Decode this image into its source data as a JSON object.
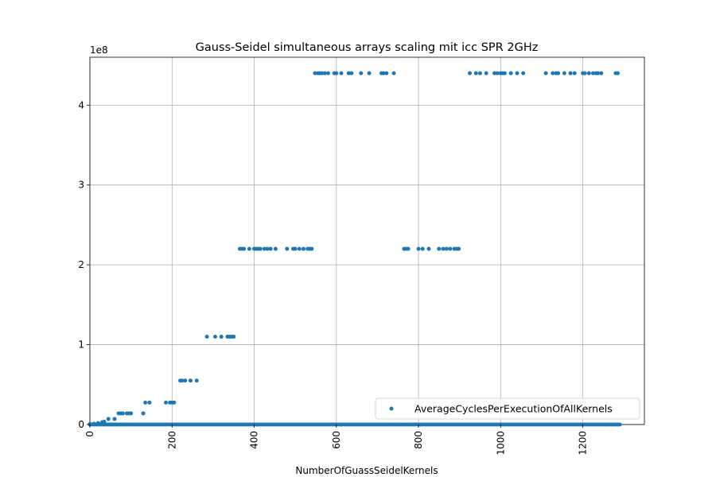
{
  "chart_data": {
    "type": "scatter",
    "title": "Gauss-Seidel simultaneous arrays scaling mit icc SPR 2GHz",
    "xlabel": "NumberOfGuassSeidelKernels",
    "ylabel": "",
    "y_offset_label": "1e8",
    "xlim": [
      0,
      1350
    ],
    "ylim": [
      0,
      460000000
    ],
    "x_ticks": [
      0,
      200,
      400,
      600,
      800,
      1000,
      1200
    ],
    "x_tick_labels": [
      "0",
      "200",
      "400",
      "600",
      "800",
      "1000",
      "1200"
    ],
    "y_ticks": [
      0,
      100000000,
      200000000,
      300000000,
      400000000
    ],
    "y_tick_labels": [
      "0",
      "1",
      "2",
      "3",
      "4"
    ],
    "grid": true,
    "legend_position": "lower-right",
    "series": [
      {
        "name": "AverageCyclesPerExecutionOfAllKernels",
        "color": "#1f77b4",
        "points": [
          [
            0,
            700000
          ],
          [
            10,
            1000000
          ],
          [
            20,
            1800000
          ],
          [
            30,
            3000000
          ],
          [
            35,
            3500000
          ],
          [
            45,
            7000000
          ],
          [
            60,
            7000000
          ],
          [
            70,
            14000000
          ],
          [
            75,
            14000000
          ],
          [
            80,
            14000000
          ],
          [
            90,
            14000000
          ],
          [
            95,
            14000000
          ],
          [
            100,
            14000000
          ],
          [
            130,
            14000000
          ],
          [
            135,
            27500000
          ],
          [
            145,
            27500000
          ],
          [
            185,
            27500000
          ],
          [
            195,
            27500000
          ],
          [
            200,
            27500000
          ],
          [
            205,
            27500000
          ],
          [
            220,
            55000000
          ],
          [
            225,
            55000000
          ],
          [
            232,
            55000000
          ],
          [
            245,
            55000000
          ],
          [
            260,
            55000000
          ],
          [
            285,
            110000000
          ],
          [
            305,
            110000000
          ],
          [
            320,
            110000000
          ],
          [
            335,
            110000000
          ],
          [
            340,
            110000000
          ],
          [
            345,
            110000000
          ],
          [
            350,
            110000000
          ],
          [
            365,
            220000000
          ],
          [
            370,
            220000000
          ],
          [
            375,
            220000000
          ],
          [
            388,
            220000000
          ],
          [
            400,
            220000000
          ],
          [
            405,
            220000000
          ],
          [
            410,
            220000000
          ],
          [
            415,
            220000000
          ],
          [
            425,
            220000000
          ],
          [
            432,
            220000000
          ],
          [
            440,
            220000000
          ],
          [
            452,
            220000000
          ],
          [
            480,
            220000000
          ],
          [
            495,
            220000000
          ],
          [
            500,
            220000000
          ],
          [
            510,
            220000000
          ],
          [
            520,
            220000000
          ],
          [
            530,
            220000000
          ],
          [
            535,
            220000000
          ],
          [
            540,
            220000000
          ],
          [
            548,
            440000000
          ],
          [
            555,
            440000000
          ],
          [
            560,
            440000000
          ],
          [
            565,
            440000000
          ],
          [
            572,
            440000000
          ],
          [
            580,
            440000000
          ],
          [
            595,
            440000000
          ],
          [
            600,
            440000000
          ],
          [
            612,
            440000000
          ],
          [
            630,
            440000000
          ],
          [
            637,
            440000000
          ],
          [
            660,
            440000000
          ],
          [
            680,
            440000000
          ],
          [
            710,
            440000000
          ],
          [
            715,
            440000000
          ],
          [
            722,
            440000000
          ],
          [
            740,
            440000000
          ],
          [
            765,
            220000000
          ],
          [
            770,
            220000000
          ],
          [
            775,
            220000000
          ],
          [
            800,
            220000000
          ],
          [
            810,
            220000000
          ],
          [
            825,
            220000000
          ],
          [
            850,
            220000000
          ],
          [
            860,
            220000000
          ],
          [
            868,
            220000000
          ],
          [
            877,
            220000000
          ],
          [
            887,
            220000000
          ],
          [
            893,
            220000000
          ],
          [
            898,
            220000000
          ],
          [
            925,
            440000000
          ],
          [
            940,
            440000000
          ],
          [
            950,
            440000000
          ],
          [
            965,
            440000000
          ],
          [
            985,
            440000000
          ],
          [
            992,
            440000000
          ],
          [
            1000,
            440000000
          ],
          [
            1005,
            440000000
          ],
          [
            1010,
            440000000
          ],
          [
            1025,
            440000000
          ],
          [
            1040,
            440000000
          ],
          [
            1055,
            440000000
          ],
          [
            1110,
            440000000
          ],
          [
            1127,
            440000000
          ],
          [
            1135,
            440000000
          ],
          [
            1140,
            440000000
          ],
          [
            1155,
            440000000
          ],
          [
            1170,
            440000000
          ],
          [
            1180,
            440000000
          ],
          [
            1200,
            440000000
          ],
          [
            1205,
            440000000
          ],
          [
            1215,
            440000000
          ],
          [
            1225,
            440000000
          ],
          [
            1232,
            440000000
          ],
          [
            1237,
            440000000
          ],
          [
            1245,
            440000000
          ],
          [
            1280,
            440000000
          ],
          [
            1285,
            440000000
          ]
        ],
        "baseline_points": {
          "x_start": 0,
          "x_end": 1290,
          "x_step": 5,
          "y": 0
        }
      }
    ]
  }
}
